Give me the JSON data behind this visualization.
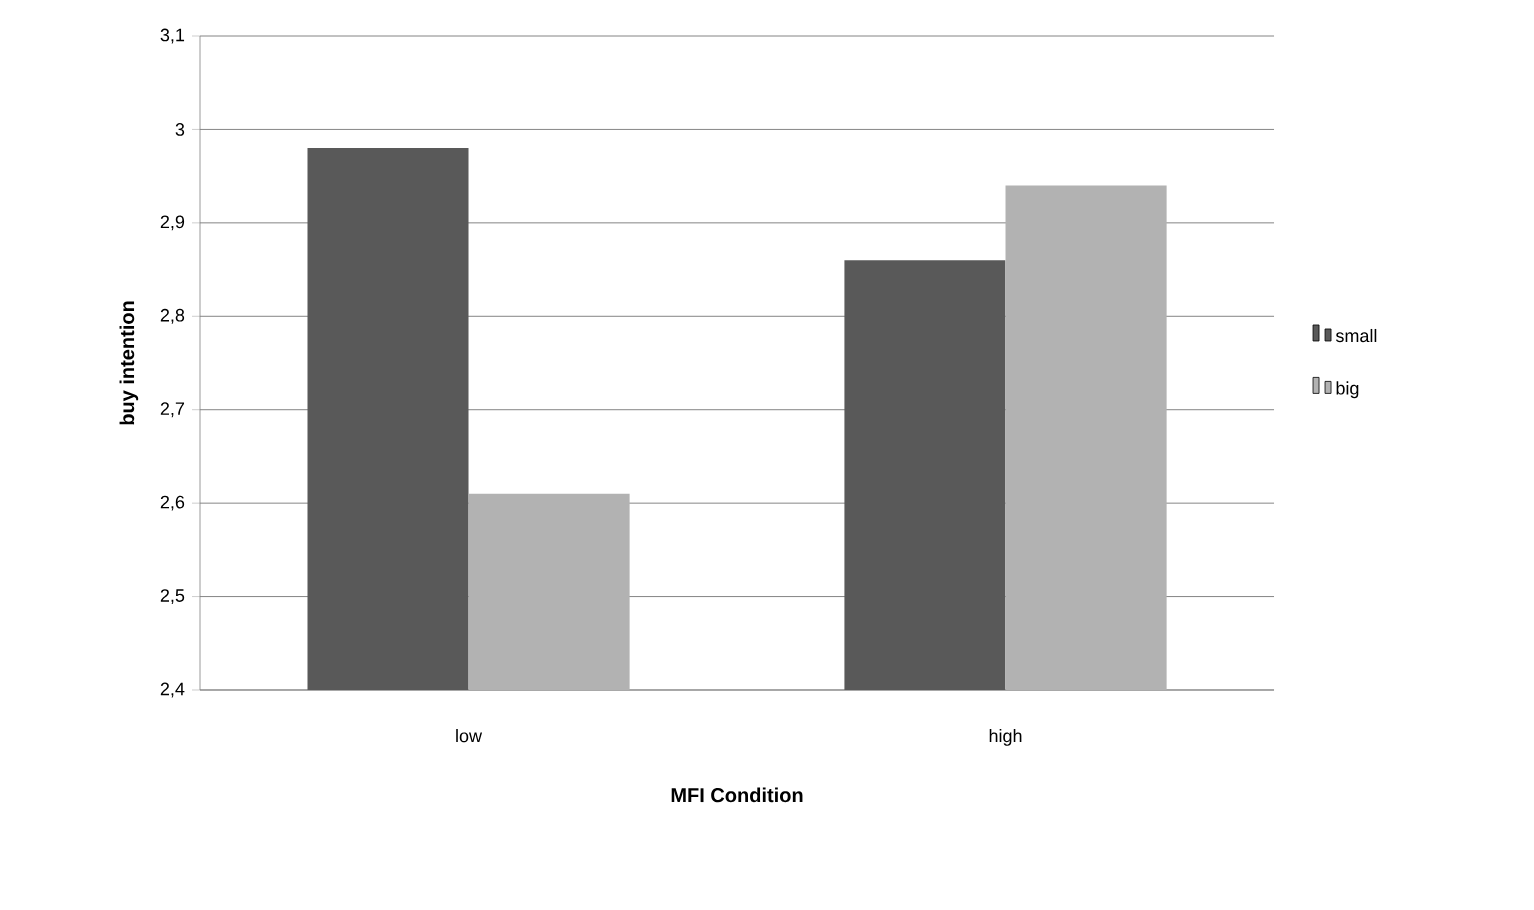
{
  "chart_data": {
    "type": "bar",
    "xlabel": "MFI Condition",
    "ylabel": "buy intention",
    "categories": [
      "low",
      "high"
    ],
    "series": [
      {
        "name": "small",
        "color": "#595959",
        "values": [
          2.98,
          2.86
        ]
      },
      {
        "name": "big",
        "color": "#b2b2b2",
        "values": [
          2.61,
          2.94
        ]
      }
    ],
    "ylim": [
      2.4,
      3.1
    ],
    "yticks": [
      {
        "value": 2.4,
        "label": "2,4"
      },
      {
        "value": 2.5,
        "label": "2,5"
      },
      {
        "value": 2.6,
        "label": "2,6"
      },
      {
        "value": 2.7,
        "label": "2,7"
      },
      {
        "value": 2.8,
        "label": "2,8"
      },
      {
        "value": 2.9,
        "label": "2,9"
      },
      {
        "value": 3,
        "label": "3"
      },
      {
        "value": 3.1,
        "label": "3,1"
      }
    ],
    "grid": "y",
    "legend": "right"
  }
}
